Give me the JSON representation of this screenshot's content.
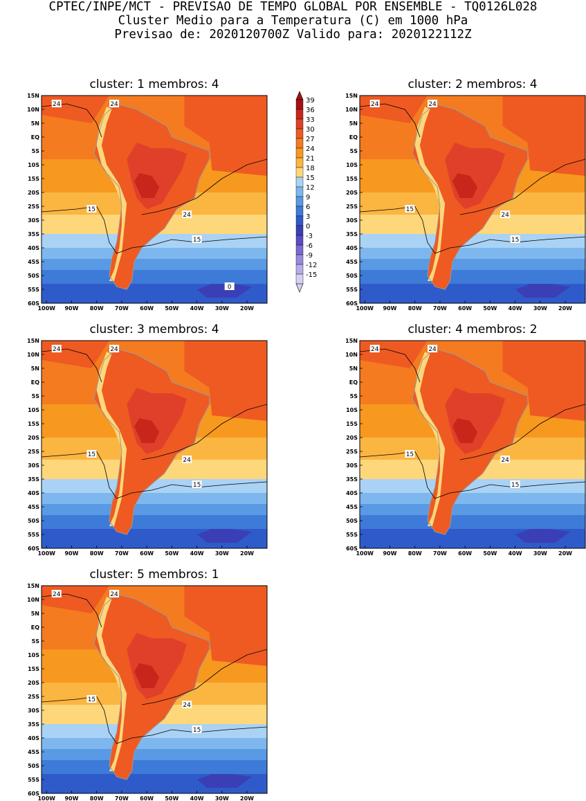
{
  "header": {
    "line1": "CPTEC/INPE/MCT - PREVISAO DE TEMPO GLOBAL POR ENSEMBLE - TQ0126L028",
    "line2": "Cluster Medio para a Temperatura (C) em 1000 hPa",
    "line3": "Previsao de: 2020120700Z   Valido para: 2020122112Z"
  },
  "panels": [
    {
      "title": "cluster: 1  membros: 4"
    },
    {
      "title": "cluster: 2  membros: 4"
    },
    {
      "title": "cluster: 3  membros: 4"
    },
    {
      "title": "cluster: 4  membros: 2"
    },
    {
      "title": "cluster: 5  membros: 1"
    }
  ],
  "axes": {
    "lat_labels": [
      "15N",
      "10N",
      "5N",
      "EQ",
      "5S",
      "10S",
      "15S",
      "20S",
      "25S",
      "30S",
      "35S",
      "40S",
      "45S",
      "50S",
      "55S",
      "60S"
    ],
    "lon_labels": [
      "100W",
      "90W",
      "80W",
      "70W",
      "60W",
      "50W",
      "40W",
      "30W",
      "20W"
    ]
  },
  "contour_labels": {
    "warm": "24",
    "cool": "15",
    "cold": "0"
  },
  "colorbar": {
    "levels": [
      "39",
      "36",
      "33",
      "30",
      "27",
      "24",
      "21",
      "18",
      "15",
      "12",
      "9",
      "6",
      "3",
      "0",
      "-3",
      "-6",
      "-9",
      "-12",
      "-15"
    ],
    "colors": [
      "#a50f15",
      "#c8261b",
      "#e0402a",
      "#ee5a22",
      "#f47b20",
      "#f7981f",
      "#fbb541",
      "#fdd77a",
      "#a9d2f5",
      "#7db7ee",
      "#5a99e4",
      "#3e7ad8",
      "#2f5bca",
      "#3b3fb6",
      "#5a4cc2",
      "#7a6bd2",
      "#9a8bdf",
      "#b9acea",
      "#d8cff5"
    ]
  }
}
